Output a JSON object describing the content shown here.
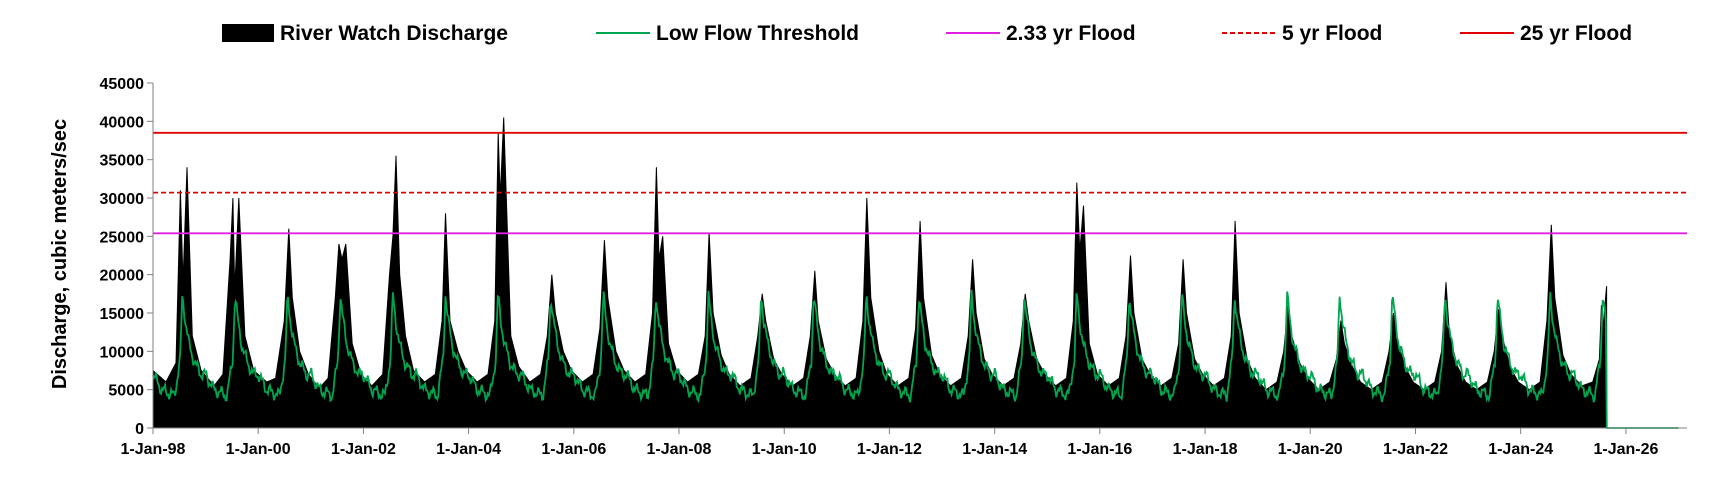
{
  "chart_data": {
    "type": "area",
    "title": "",
    "xlabel": "",
    "ylabel": "Discharge, cubic meters/sec",
    "ylim": [
      0,
      45000
    ],
    "yticks": [
      0,
      5000,
      10000,
      15000,
      20000,
      25000,
      30000,
      35000,
      40000,
      45000
    ],
    "xlim": [
      "1998-01-01",
      "2027-03-01"
    ],
    "xticks": [
      {
        "date": "1998-01-01",
        "label": "1-Jan-98"
      },
      {
        "date": "2000-01-01",
        "label": "1-Jan-00"
      },
      {
        "date": "2002-01-01",
        "label": "1-Jan-02"
      },
      {
        "date": "2004-01-01",
        "label": "1-Jan-04"
      },
      {
        "date": "2006-01-01",
        "label": "1-Jan-06"
      },
      {
        "date": "2008-01-01",
        "label": "1-Jan-08"
      },
      {
        "date": "2010-01-01",
        "label": "1-Jan-10"
      },
      {
        "date": "2012-01-01",
        "label": "1-Jan-12"
      },
      {
        "date": "2014-01-01",
        "label": "1-Jan-14"
      },
      {
        "date": "2016-01-01",
        "label": "1-Jan-16"
      },
      {
        "date": "2018-01-01",
        "label": "1-Jan-18"
      },
      {
        "date": "2020-01-01",
        "label": "1-Jan-20"
      },
      {
        "date": "2022-01-01",
        "label": "1-Jan-22"
      },
      {
        "date": "2024-01-01",
        "label": "1-Jan-24"
      },
      {
        "date": "2026-01-01",
        "label": "1-Jan-26"
      }
    ],
    "grid": false,
    "legend_position": "top",
    "series": [
      {
        "name": "River Watch Discharge",
        "kind": "area",
        "color": "#000000",
        "x": [
          "1998-01-01",
          "1998-04-01",
          "1998-06-10",
          "1998-07-10",
          "1998-07-28",
          "1998-08-25",
          "1998-10-01",
          "1998-12-01",
          "1999-03-01",
          "1999-05-01",
          "1999-06-20",
          "1999-07-10",
          "1999-07-22",
          "1999-08-20",
          "1999-10-01",
          "1999-12-01",
          "2000-03-01",
          "2000-05-01",
          "2000-07-01",
          "2000-08-01",
          "2000-08-25",
          "2000-10-15",
          "2000-12-15",
          "2001-03-01",
          "2001-05-01",
          "2001-06-20",
          "2001-07-15",
          "2001-08-05",
          "2001-09-01",
          "2001-10-15",
          "2001-12-15",
          "2002-03-01",
          "2002-05-15",
          "2002-07-01",
          "2002-07-25",
          "2002-08-15",
          "2002-09-10",
          "2002-10-20",
          "2002-12-15",
          "2003-03-01",
          "2003-05-15",
          "2003-07-01",
          "2003-07-25",
          "2003-08-25",
          "2003-10-20",
          "2003-12-15",
          "2004-03-01",
          "2004-05-15",
          "2004-07-01",
          "2004-07-25",
          "2004-08-08",
          "2004-09-01",
          "2004-10-20",
          "2004-12-15",
          "2005-03-01",
          "2005-05-15",
          "2005-07-01",
          "2005-08-01",
          "2005-08-25",
          "2005-10-20",
          "2005-12-15",
          "2006-03-01",
          "2006-05-15",
          "2006-07-01",
          "2006-08-01",
          "2006-08-25",
          "2006-10-20",
          "2006-12-15",
          "2007-03-01",
          "2007-05-15",
          "2007-07-01",
          "2007-07-28",
          "2007-08-15",
          "2007-09-10",
          "2007-10-20",
          "2007-12-15",
          "2008-03-01",
          "2008-05-15",
          "2008-07-01",
          "2008-07-28",
          "2008-08-25",
          "2008-10-20",
          "2008-12-15",
          "2009-03-01",
          "2009-05-15",
          "2009-07-01",
          "2009-08-01",
          "2009-08-25",
          "2009-10-20",
          "2009-12-15",
          "2010-03-01",
          "2010-05-15",
          "2010-07-01",
          "2010-08-01",
          "2010-08-25",
          "2010-10-20",
          "2010-12-15",
          "2011-03-01",
          "2011-05-15",
          "2011-07-01",
          "2011-07-28",
          "2011-08-25",
          "2011-10-20",
          "2011-12-15",
          "2012-03-01",
          "2012-05-15",
          "2012-07-01",
          "2012-08-01",
          "2012-08-25",
          "2012-10-20",
          "2012-12-15",
          "2013-03-01",
          "2013-05-15",
          "2013-07-01",
          "2013-08-01",
          "2013-08-25",
          "2013-10-20",
          "2013-12-15",
          "2014-03-01",
          "2014-05-15",
          "2014-07-01",
          "2014-08-01",
          "2014-08-25",
          "2014-10-20",
          "2014-12-15",
          "2015-03-01",
          "2015-05-15",
          "2015-07-01",
          "2015-07-25",
          "2015-08-15",
          "2015-09-10",
          "2015-10-20",
          "2015-12-15",
          "2016-03-01",
          "2016-05-15",
          "2016-07-01",
          "2016-08-01",
          "2016-08-25",
          "2016-10-20",
          "2016-12-15",
          "2017-03-01",
          "2017-05-15",
          "2017-07-01",
          "2017-08-01",
          "2017-08-25",
          "2017-10-20",
          "2017-12-15",
          "2018-03-01",
          "2018-05-15",
          "2018-07-01",
          "2018-07-28",
          "2018-08-25",
          "2018-10-20",
          "2018-12-15",
          "2019-03-01",
          "2019-05-15",
          "2019-07-01",
          "2019-08-01",
          "2019-08-25",
          "2019-10-20",
          "2019-12-15",
          "2020-03-01",
          "2020-05-15",
          "2020-07-01",
          "2020-08-01",
          "2020-08-25",
          "2020-10-20",
          "2020-12-15",
          "2021-03-01",
          "2021-05-15",
          "2021-07-01",
          "2021-08-01",
          "2021-08-25",
          "2021-10-20",
          "2021-12-15",
          "2022-03-01",
          "2022-05-15",
          "2022-07-01",
          "2022-08-01",
          "2022-08-25",
          "2022-10-20",
          "2022-12-15",
          "2023-03-01",
          "2023-05-15",
          "2023-07-01",
          "2023-08-01",
          "2023-08-25",
          "2023-10-20",
          "2023-12-15",
          "2024-03-01",
          "2024-05-15",
          "2024-07-01",
          "2024-08-01",
          "2024-08-25",
          "2024-10-20",
          "2024-12-15",
          "2025-03-01",
          "2025-05-15",
          "2025-07-01",
          "2025-07-15",
          "2025-07-25",
          "2025-08-20",
          "2025-08-21",
          "2026-12-31"
        ],
        "values": [
          7500,
          6000,
          8500,
          31000,
          19000,
          34000,
          12000,
          7500,
          5500,
          7000,
          22000,
          30000,
          18000,
          30000,
          12000,
          7500,
          6000,
          6500,
          14000,
          26000,
          17000,
          10000,
          7000,
          5200,
          6500,
          17000,
          24000,
          22000,
          24000,
          11000,
          7000,
          5500,
          7000,
          20000,
          25000,
          35500,
          20000,
          12000,
          7500,
          6000,
          7000,
          14000,
          28000,
          14000,
          10000,
          7500,
          6000,
          7000,
          14000,
          38500,
          30000,
          40500,
          12000,
          8000,
          6000,
          7000,
          12000,
          20000,
          15000,
          10000,
          7500,
          6000,
          7000,
          13000,
          24500,
          17000,
          10000,
          7500,
          6000,
          7000,
          15000,
          34000,
          22000,
          25000,
          11000,
          7500,
          6000,
          7000,
          12000,
          25500,
          15000,
          9500,
          7000,
          5500,
          6500,
          12000,
          17500,
          14000,
          9000,
          7000,
          5500,
          6500,
          12000,
          20500,
          14000,
          9000,
          7000,
          5500,
          6500,
          14000,
          30000,
          17000,
          10000,
          7000,
          5500,
          6500,
          13000,
          27000,
          17000,
          9500,
          7000,
          5500,
          6500,
          12000,
          22000,
          15000,
          9000,
          7000,
          5500,
          6500,
          11000,
          17500,
          14000,
          9000,
          7000,
          5500,
          6500,
          14000,
          32000,
          23000,
          29000,
          11000,
          7000,
          5500,
          6500,
          12000,
          22500,
          15000,
          9000,
          7000,
          5500,
          6500,
          11000,
          22000,
          15000,
          9000,
          7000,
          5500,
          6500,
          12000,
          27000,
          15000,
          9000,
          6500,
          5000,
          6000,
          10000,
          16000,
          12000,
          8500,
          6500,
          5000,
          6000,
          9000,
          14000,
          11000,
          8000,
          6000,
          5000,
          6000,
          10000,
          15000,
          11500,
          8000,
          6000,
          5000,
          6000,
          10000,
          19000,
          12000,
          8000,
          6000,
          5000,
          6000,
          10000,
          15500,
          12000,
          8000,
          6000,
          5000,
          6000,
          14000,
          26500,
          17000,
          9500,
          7000,
          5500,
          6000,
          9000,
          16000,
          13000,
          18500,
          0,
          0
        ]
      },
      {
        "name": "Low Flow Threshold",
        "kind": "line",
        "color": "#00A550",
        "seasonal_doy": [
          1,
          60,
          150,
          190,
          205,
          225,
          250,
          290,
          335,
          365
        ],
        "seasonal_values": [
          7000,
          5000,
          4200,
          9000,
          17500,
          14000,
          11000,
          8500,
          7000,
          7000
        ],
        "x_range": [
          "1998-01-01",
          "2025-08-20"
        ],
        "x_after": [
          "2025-08-21",
          "2026-12-31"
        ],
        "values_after": [
          0,
          0
        ]
      },
      {
        "name": "2.33 yr Flood",
        "kind": "hline",
        "color": "#E020E0",
        "value": 25400
      },
      {
        "name": "5 yr Flood",
        "kind": "hline-dashed",
        "color": "#E00000",
        "value": 30700
      },
      {
        "name": "25 yr Flood",
        "kind": "hline",
        "color": "#E00000",
        "value": 38500
      }
    ]
  }
}
